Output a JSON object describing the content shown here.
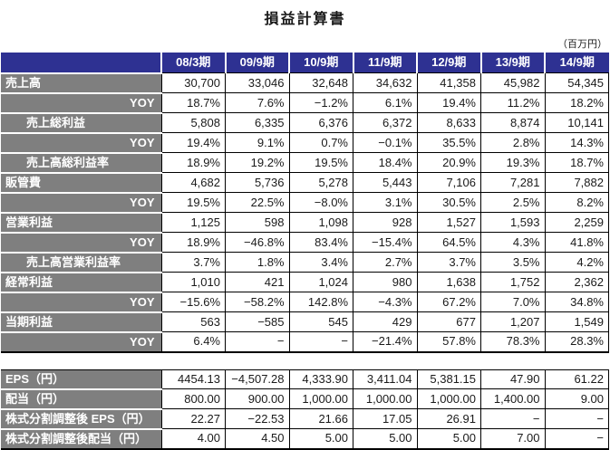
{
  "page": {
    "title": "損益計算書",
    "unit_note": "（百万円）"
  },
  "colors": {
    "header_bg": "#2e3192",
    "label_bg": "#7f7f7f",
    "grid": "#000000"
  },
  "columns": [
    "08/3期",
    "09/9期",
    "10/9期",
    "11/9期",
    "12/9期",
    "13/9期",
    "14/9期"
  ],
  "main_table": {
    "rows": [
      {
        "label": "売上高",
        "style": "plain",
        "values": [
          "30,700",
          "33,046",
          "32,648",
          "34,632",
          "41,358",
          "45,982",
          "54,345"
        ]
      },
      {
        "label": "YOY",
        "style": "yoy",
        "values": [
          "18.7%",
          "7.6%",
          "−1.2%",
          "6.1%",
          "19.4%",
          "11.2%",
          "18.2%"
        ]
      },
      {
        "label": "売上総利益",
        "style": "indent",
        "values": [
          "5,808",
          "6,335",
          "6,376",
          "6,372",
          "8,633",
          "8,874",
          "10,141"
        ]
      },
      {
        "label": "YOY",
        "style": "yoy",
        "values": [
          "19.4%",
          "9.1%",
          "0.7%",
          "−0.1%",
          "35.5%",
          "2.8%",
          "14.3%"
        ]
      },
      {
        "label": "売上高総利益率",
        "style": "indent",
        "values": [
          "18.9%",
          "19.2%",
          "19.5%",
          "18.4%",
          "20.9%",
          "19.3%",
          "18.7%"
        ]
      },
      {
        "label": "販管費",
        "style": "plain",
        "values": [
          "4,682",
          "5,736",
          "5,278",
          "5,443",
          "7,106",
          "7,281",
          "7,882"
        ]
      },
      {
        "label": "YOY",
        "style": "yoy",
        "values": [
          "19.5%",
          "22.5%",
          "−8.0%",
          "3.1%",
          "30.5%",
          "2.5%",
          "8.2%"
        ]
      },
      {
        "label": "営業利益",
        "style": "plain",
        "values": [
          "1,125",
          "598",
          "1,098",
          "928",
          "1,527",
          "1,593",
          "2,259"
        ]
      },
      {
        "label": "YOY",
        "style": "yoy",
        "values": [
          "18.9%",
          "−46.8%",
          "83.4%",
          "−15.4%",
          "64.5%",
          "4.3%",
          "41.8%"
        ]
      },
      {
        "label": "売上高営業利益率",
        "style": "indent",
        "values": [
          "3.7%",
          "1.8%",
          "3.4%",
          "2.7%",
          "3.7%",
          "3.5%",
          "4.2%"
        ]
      },
      {
        "label": "経常利益",
        "style": "plain",
        "values": [
          "1,010",
          "421",
          "1,024",
          "980",
          "1,638",
          "1,752",
          "2,362"
        ]
      },
      {
        "label": "YOY",
        "style": "yoy",
        "values": [
          "−15.6%",
          "−58.2%",
          "142.8%",
          "−4.3%",
          "67.2%",
          "7.0%",
          "34.8%"
        ]
      },
      {
        "label": "当期利益",
        "style": "plain",
        "values": [
          "563",
          "−585",
          "545",
          "429",
          "677",
          "1,207",
          "1,549"
        ]
      },
      {
        "label": "YOY",
        "style": "yoy",
        "values": [
          "6.4%",
          "−",
          "−",
          "−21.4%",
          "57.8%",
          "78.3%",
          "28.3%"
        ]
      }
    ]
  },
  "bottom_table": {
    "rows": [
      {
        "label": "EPS（円）",
        "style": "plain",
        "values": [
          "4454.13",
          "−4,507.28",
          "4,333.90",
          "3,411.04",
          "5,381.15",
          "47.90",
          "61.22"
        ]
      },
      {
        "label": "配当（円）",
        "style": "plain",
        "values": [
          "800.00",
          "900.00",
          "1,000.00",
          "1,000.00",
          "1,000.00",
          "1,400.00",
          "9.00"
        ]
      },
      {
        "label": "株式分割調整後 EPS（円）",
        "style": "plain",
        "values": [
          "22.27",
          "−22.53",
          "21.66",
          "17.05",
          "26.91",
          "−",
          "−"
        ]
      },
      {
        "label": "株式分割調整後配当（円）",
        "style": "plain",
        "values": [
          "4.00",
          "4.50",
          "5.00",
          "5.00",
          "5.00",
          "7.00",
          "−"
        ]
      }
    ]
  }
}
